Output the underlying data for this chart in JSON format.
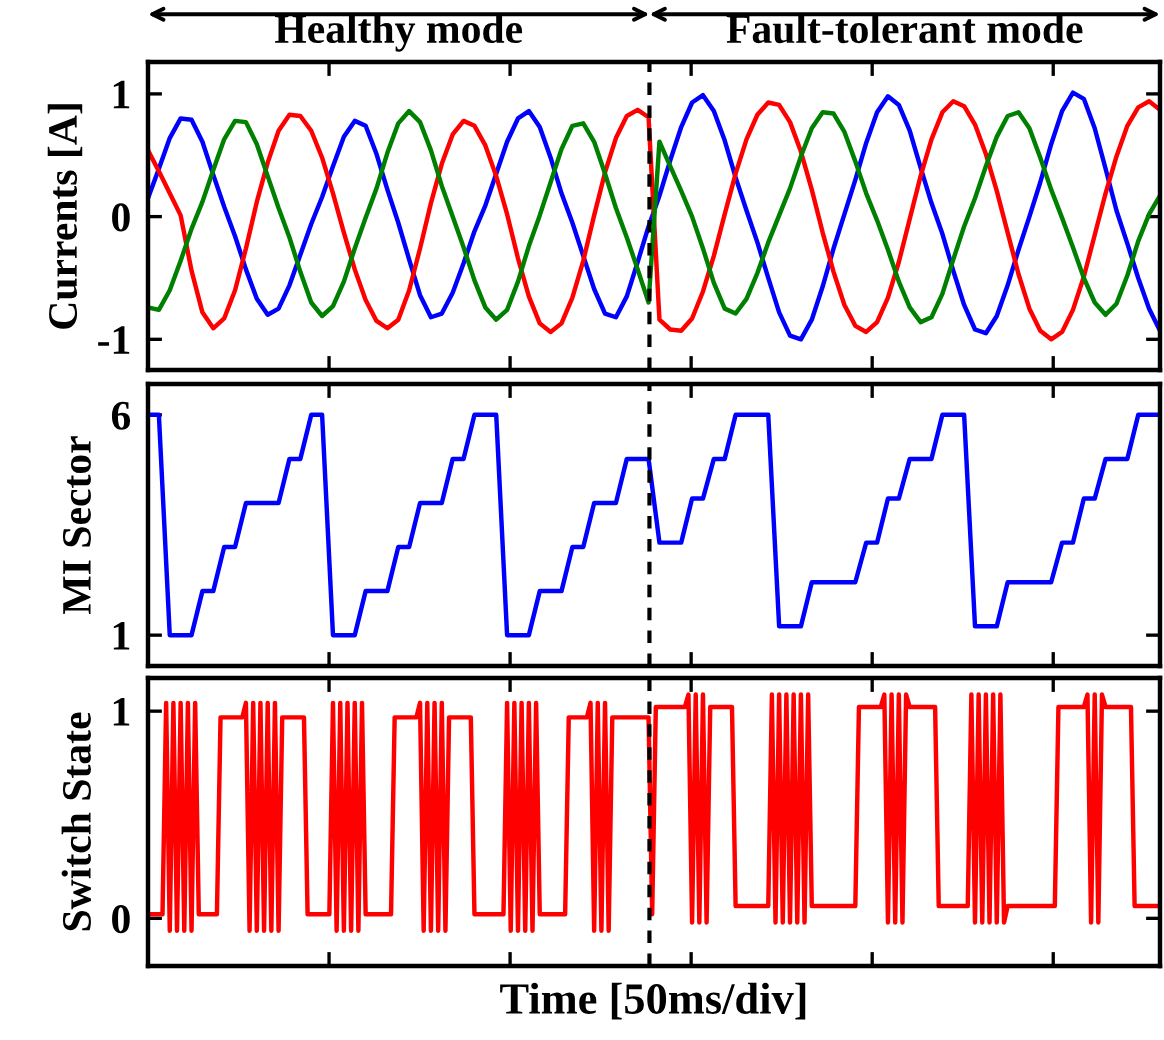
{
  "chart_data": [
    {
      "type": "line",
      "ylabel": "Currents [A]",
      "annotations": [
        "Healthy mode",
        "Fault-tolerant mode"
      ],
      "categories": [
        null,
        null,
        null,
        null,
        null,
        null,
        null,
        null,
        null,
        null,
        null,
        null,
        null,
        null,
        null,
        null,
        null,
        null,
        null,
        null,
        null,
        null,
        null,
        null,
        null,
        null,
        null,
        null,
        null,
        null,
        null,
        null,
        null,
        null,
        null,
        null,
        null,
        null,
        null,
        null,
        null,
        null,
        null,
        null,
        null,
        null,
        null,
        null,
        null,
        null,
        null,
        null,
        null,
        null,
        null,
        null,
        null,
        null,
        null,
        null,
        null,
        null,
        null,
        null,
        null,
        null,
        null,
        null,
        null,
        null,
        null,
        null,
        null,
        null,
        null,
        null,
        null,
        null,
        null,
        null,
        null,
        null,
        null,
        null,
        null,
        null,
        null,
        null,
        null,
        null,
        null,
        null,
        null,
        null
      ],
      "ylim": [
        -1.25,
        1.26
      ],
      "yticks": [
        -1,
        0,
        1
      ],
      "tick_labels": "y",
      "series": [
        {
          "color": "#0000ff",
          "values": [
            0.15,
            0.39,
            0.64,
            0.8,
            0.79,
            0.61,
            0.34,
            0.08,
            -0.16,
            -0.43,
            -0.67,
            -0.8,
            -0.75,
            -0.56,
            -0.31,
            -0.06,
            0.16,
            0.41,
            0.65,
            0.78,
            0.74,
            0.51,
            0.22,
            -0.05,
            -0.35,
            -0.64,
            -0.82,
            -0.79,
            -0.62,
            -0.38,
            -0.12,
            0.09,
            0.35,
            0.61,
            0.8,
            0.86,
            0.73,
            0.48,
            0.19,
            -0.05,
            -0.32,
            -0.59,
            -0.79,
            -0.82,
            -0.65,
            -0.37,
            -0.08,
            0.17,
            0.46,
            0.73,
            0.93,
            0.99,
            0.86,
            0.62,
            0.32,
            0.05,
            -0.21,
            -0.5,
            -0.78,
            -0.97,
            -1.0,
            -0.84,
            -0.57,
            -0.26,
            0.02,
            0.3,
            0.6,
            0.85,
            0.98,
            0.91,
            0.7,
            0.4,
            0.11,
            -0.14,
            -0.44,
            -0.72,
            -0.92,
            -0.95,
            -0.81,
            -0.56,
            -0.27,
            0,
            0.28,
            0.59,
            0.86,
            1.01,
            0.96,
            0.72,
            0.39,
            0.05,
            -0.22,
            -0.5,
            -0.75,
            -0.93
          ]
        },
        {
          "color": "#ff0000",
          "values": [
            0.54,
            0.37,
            0.19,
            0.01,
            -0.44,
            -0.78,
            -0.91,
            -0.83,
            -0.6,
            -0.26,
            0.12,
            0.44,
            0.7,
            0.83,
            0.82,
            0.7,
            0.48,
            0.19,
            -0.13,
            -0.43,
            -0.68,
            -0.85,
            -0.91,
            -0.84,
            -0.6,
            -0.26,
            0.11,
            0.43,
            0.67,
            0.78,
            0.74,
            0.58,
            0.33,
            0.02,
            -0.34,
            -0.65,
            -0.87,
            -0.94,
            -0.87,
            -0.66,
            -0.36,
            0.01,
            0.36,
            0.64,
            0.82,
            0.87,
            0.81,
            -0.84,
            -0.92,
            -0.93,
            -0.83,
            -0.61,
            -0.32,
            0.02,
            0.35,
            0.63,
            0.83,
            0.93,
            0.91,
            0.77,
            0.53,
            0.22,
            -0.13,
            -0.45,
            -0.72,
            -0.89,
            -0.94,
            -0.86,
            -0.66,
            -0.37,
            -0.02,
            0.33,
            0.63,
            0.85,
            0.94,
            0.9,
            0.75,
            0.51,
            0.21,
            -0.13,
            -0.47,
            -0.75,
            -0.93,
            -1.0,
            -0.94,
            -0.76,
            -0.49,
            -0.15,
            0.19,
            0.49,
            0.74,
            0.89,
            0.94,
            0.87
          ]
        },
        {
          "color": "#008000",
          "values": [
            -0.74,
            -0.76,
            -0.6,
            -0.36,
            -0.1,
            0.12,
            0.38,
            0.63,
            0.78,
            0.77,
            0.59,
            0.33,
            0.07,
            -0.17,
            -0.45,
            -0.7,
            -0.81,
            -0.73,
            -0.53,
            -0.26,
            -0.01,
            0.23,
            0.52,
            0.76,
            0.86,
            0.77,
            0.54,
            0.25,
            0,
            -0.25,
            -0.52,
            -0.74,
            -0.84,
            -0.76,
            -0.53,
            -0.24,
            0.01,
            0.28,
            0.55,
            0.74,
            0.76,
            0.61,
            0.35,
            0.07,
            -0.17,
            -0.43,
            -0.7,
            0.61,
            0.41,
            0.21,
            0,
            -0.26,
            -0.54,
            -0.75,
            -0.79,
            -0.67,
            -0.46,
            -0.21,
            0.01,
            0.23,
            0.49,
            0.72,
            0.85,
            0.84,
            0.69,
            0.45,
            0.19,
            -0.03,
            -0.27,
            -0.53,
            -0.74,
            -0.86,
            -0.82,
            -0.63,
            -0.35,
            -0.08,
            0.15,
            0.41,
            0.65,
            0.82,
            0.85,
            0.72,
            0.48,
            0.22,
            -0.01,
            -0.25,
            -0.5,
            -0.7,
            -0.8,
            -0.71,
            -0.48,
            -0.2,
            0.02,
            0.17
          ]
        }
      ]
    },
    {
      "type": "line",
      "ylabel": "MI Sector",
      "categories": [
        null,
        null,
        null,
        null,
        null,
        null,
        null,
        null,
        null,
        null,
        null,
        null,
        null,
        null,
        null,
        null,
        null,
        null,
        null,
        null,
        null,
        null,
        null,
        null,
        null,
        null,
        null,
        null,
        null,
        null,
        null,
        null,
        null,
        null,
        null,
        null,
        null,
        null,
        null,
        null,
        null,
        null,
        null,
        null,
        null,
        null,
        null,
        null,
        null,
        null,
        null,
        null,
        null,
        null,
        null,
        null,
        null,
        null,
        null,
        null,
        null,
        null,
        null,
        null,
        null,
        null,
        null,
        null,
        null,
        null,
        null,
        null,
        null,
        null,
        null,
        null,
        null,
        null,
        null,
        null,
        null,
        null,
        null,
        null,
        null,
        null,
        null,
        null,
        null,
        null,
        null,
        null,
        null,
        null
      ],
      "ylim": [
        0.3,
        6.7
      ],
      "yticks": [
        1,
        6
      ],
      "tick_labels": "y",
      "series": [
        {
          "color": "#0000ff",
          "values": [
            6,
            6,
            1,
            1,
            1,
            2,
            2,
            3,
            3,
            4,
            4,
            4,
            4,
            5,
            5,
            6,
            6,
            1,
            1,
            1,
            2,
            2,
            2,
            3,
            3,
            4,
            4,
            4,
            5,
            5,
            6,
            6,
            6,
            1,
            1,
            1,
            2,
            2,
            2,
            3,
            3,
            4,
            4,
            4,
            5,
            5,
            5,
            3.1,
            3.1,
            3.1,
            4.1,
            4.1,
            5,
            5,
            6,
            6,
            6,
            6,
            1.2,
            1.2,
            1.2,
            2.2,
            2.2,
            2.2,
            2.2,
            2.2,
            3.1,
            3.1,
            4.1,
            4.1,
            5,
            5,
            5,
            6,
            6,
            6,
            1.2,
            1.2,
            1.2,
            2.2,
            2.2,
            2.2,
            2.2,
            2.2,
            3.1,
            3.1,
            4.1,
            4.1,
            5,
            5,
            5,
            6,
            6,
            6
          ]
        }
      ]
    },
    {
      "type": "line",
      "ylabel": "Switch State",
      "xlabel": "Time [50ms/div]",
      "categories": [
        null,
        null,
        null,
        null,
        null,
        null,
        null,
        null,
        null,
        null,
        null,
        null,
        null,
        null,
        null,
        null,
        null,
        null,
        null,
        null,
        null,
        null,
        null,
        null,
        null,
        null,
        null,
        null,
        null,
        null,
        null,
        null,
        null,
        null,
        null,
        null,
        null,
        null,
        null,
        null,
        null,
        null,
        null,
        null,
        null,
        null,
        null,
        null,
        null,
        null,
        null,
        null,
        null,
        null,
        null,
        null,
        null,
        null,
        null,
        null,
        null,
        null,
        null,
        null,
        null,
        null,
        null,
        null,
        null,
        null,
        null,
        null,
        null,
        null,
        null,
        null,
        null,
        null,
        null,
        null,
        null,
        null,
        null,
        null,
        null,
        null,
        null,
        null,
        null,
        null,
        null,
        null,
        null,
        null,
        null,
        null,
        null,
        null,
        null,
        null,
        null,
        null,
        null,
        null,
        null,
        null,
        null,
        null,
        null,
        null,
        null,
        null,
        null,
        null,
        null,
        null,
        null,
        null,
        null,
        null,
        null,
        null,
        null,
        null,
        null,
        null,
        null,
        null,
        null,
        null,
        null,
        null,
        null,
        null,
        null,
        null,
        null,
        null,
        null,
        null,
        null,
        null,
        null,
        null,
        null,
        null,
        null,
        null,
        null,
        null,
        null,
        null,
        null,
        null,
        null,
        null,
        null,
        null,
        null,
        null,
        null,
        null,
        null,
        null,
        null,
        null,
        null,
        null,
        null,
        null,
        null,
        null,
        null,
        null,
        null,
        null,
        null,
        null,
        null,
        null,
        null,
        null,
        null,
        null,
        null,
        null,
        null,
        null,
        null,
        null,
        null,
        null,
        null,
        null,
        null,
        null,
        null,
        null,
        null,
        null,
        null,
        null,
        null,
        null,
        null,
        null,
        null,
        null,
        null,
        null,
        null,
        null,
        null,
        null,
        null,
        null,
        null,
        null,
        null,
        null,
        null,
        null,
        null,
        null,
        null,
        null,
        null,
        null,
        null,
        null,
        null,
        null,
        null,
        null,
        null,
        null,
        null,
        null,
        null,
        null,
        null,
        null,
        null,
        null,
        null,
        null,
        null,
        null,
        null,
        null,
        null,
        null,
        null,
        null,
        null,
        null,
        null,
        null,
        null,
        null,
        null,
        null,
        null,
        null,
        null,
        null,
        null,
        null,
        null,
        null,
        null,
        null,
        null,
        null,
        null,
        null,
        null,
        null,
        null,
        null
      ],
      "ylim": [
        -0.23,
        1.16
      ],
      "yticks": [
        0,
        1
      ],
      "tick_labels": "y",
      "series": [
        {
          "color": "#ff0000",
          "values": [
            0.02,
            0.02,
            0.02,
            0.02,
            0.02,
            1.04,
            -0.06,
            1.04,
            -0.06,
            1.04,
            -0.06,
            1.04,
            -0.06,
            1.04,
            0.02,
            0.02,
            0.02,
            0.02,
            0.02,
            0.02,
            0.97,
            0.97,
            0.97,
            0.97,
            0.97,
            0.97,
            0.97,
            1.04,
            -0.06,
            1.04,
            -0.06,
            1.04,
            -0.06,
            1.04,
            -0.06,
            1.04,
            -0.06,
            0.97,
            0.97,
            0.97,
            0.97,
            0.97,
            0.97,
            0.97,
            0.02,
            0.02,
            0.02,
            0.02,
            0.02,
            0.02,
            0.02,
            1.04,
            -0.06,
            1.04,
            -0.06,
            1.04,
            -0.06,
            1.04,
            -0.06,
            1.04,
            0.02,
            0.02,
            0.02,
            0.02,
            0.02,
            0.02,
            0.02,
            0.02,
            0.97,
            0.97,
            0.97,
            0.97,
            0.97,
            0.97,
            0.97,
            1.04,
            -0.06,
            1.04,
            -0.06,
            1.04,
            -0.06,
            1.04,
            -0.06,
            0.97,
            0.97,
            0.97,
            0.97,
            0.97,
            0.97,
            0.97,
            0.02,
            0.02,
            0.02,
            0.02,
            0.02,
            0.02,
            0.02,
            0.02,
            0.02,
            1.04,
            -0.06,
            1.04,
            -0.06,
            1.04,
            -0.06,
            1.04,
            -0.06,
            1.04,
            0.02,
            0.02,
            0.02,
            0.02,
            0.02,
            0.02,
            0.02,
            0.02,
            0.97,
            0.97,
            0.97,
            0.97,
            0.97,
            0.97,
            1.04,
            -0.06,
            1.04,
            -0.06,
            1.04,
            -0.06,
            0.97,
            0.97,
            0.97,
            0.97,
            0.97,
            0.97,
            0.97,
            0.97,
            0.97,
            0.97,
            0.97,
            0.02,
            1.02,
            1.02,
            1.02,
            1.02,
            1.02,
            1.02,
            1.02,
            1.02,
            1.02,
            1.08,
            -0.02,
            1.08,
            -0.02,
            1.08,
            -0.02,
            1.02,
            1.02,
            1.02,
            1.02,
            1.02,
            1.02,
            1.02,
            0.06,
            0.06,
            0.06,
            0.06,
            0.06,
            0.06,
            0.06,
            0.06,
            0.06,
            0.06,
            1.08,
            -0.02,
            1.08,
            -0.02,
            1.08,
            -0.02,
            1.08,
            -0.02,
            1.08,
            -0.02,
            1.08,
            0.06,
            0.06,
            0.06,
            0.06,
            0.06,
            0.06,
            0.06,
            0.06,
            0.06,
            0.06,
            0.06,
            0.06,
            0.06,
            1.02,
            1.02,
            1.02,
            1.02,
            1.02,
            1.02,
            1.02,
            1.08,
            -0.02,
            1.08,
            -0.02,
            1.08,
            -0.02,
            1.08,
            1.02,
            1.02,
            1.02,
            1.02,
            1.02,
            1.02,
            1.02,
            1.02,
            0.06,
            0.06,
            0.06,
            0.06,
            0.06,
            0.06,
            0.06,
            0.06,
            0.06,
            1.08,
            -0.02,
            1.08,
            -0.02,
            1.08,
            -0.02,
            1.08,
            -0.02,
            1.08,
            -0.02,
            0.06,
            0.06,
            0.06,
            0.06,
            0.06,
            0.06,
            0.06,
            0.06,
            0.06,
            0.06,
            0.06,
            0.06,
            0.06,
            0.06,
            1.02,
            1.02,
            1.02,
            1.02,
            1.02,
            1.02,
            1.02,
            1.02,
            1.08,
            -0.02,
            1.08,
            -0.02,
            1.08,
            1.02,
            1.02,
            1.02,
            1.02,
            1.02,
            1.02,
            1.02,
            1.02,
            0.06,
            0.06,
            0.06,
            0.06,
            0.06,
            0.06,
            0.06,
            0.06
          ]
        }
      ]
    }
  ]
}
